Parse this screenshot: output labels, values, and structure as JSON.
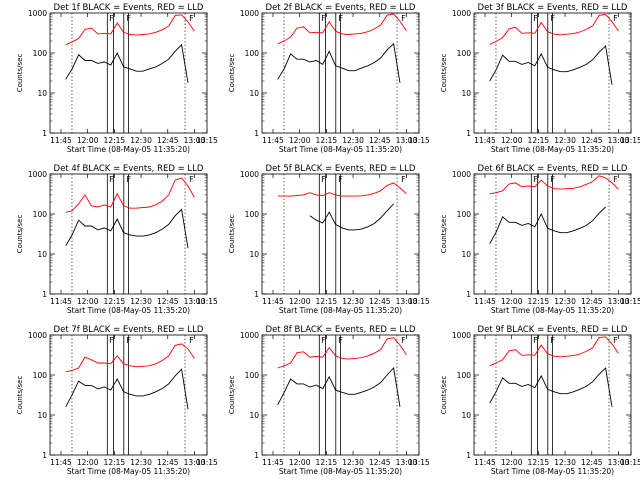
{
  "chart_data": [
    {
      "type": "line",
      "title": "Det 1f BLACK = Events, RED = LLD",
      "xlabel": "Start Time (08-May-05 11:35:20)",
      "ylabel": "Counts/sec",
      "yscale": "log",
      "y_ticks": [
        "1",
        "10",
        "100",
        "1000"
      ],
      "x_ticks": [
        "11:45",
        "12:00",
        "12:15",
        "12:30",
        "12:45",
        "13:00",
        "13:15"
      ],
      "series": [
        {
          "color": "#ff0000",
          "values": [
            160,
            190,
            230,
            390,
            420,
            300,
            310,
            300,
            560,
            330,
            290,
            280,
            290,
            300,
            330,
            380,
            470,
            860,
            900,
            600,
            350
          ]
        },
        {
          "color": "#000000",
          "values": [
            22,
            40,
            90,
            65,
            65,
            55,
            60,
            50,
            100,
            45,
            40,
            35,
            35,
            40,
            45,
            55,
            70,
            110,
            160,
            18,
            null
          ]
        }
      ],
      "markers": {
        "flags": [
          "F",
          "F",
          "F"
        ]
      }
    },
    {
      "type": "line",
      "title": "Det 2f BLACK = Events, RED = LLD",
      "xlabel": "Start Time (08-May-05 11:35:20)",
      "ylabel": "Counts/sec",
      "yscale": "log",
      "y_ticks": [
        "1",
        "10",
        "100",
        "1000"
      ],
      "x_ticks": [
        "11:45",
        "12:00",
        "12:15",
        "12:30",
        "12:45",
        "13:00",
        "13:15"
      ],
      "series": [
        {
          "color": "#ff0000",
          "values": [
            170,
            200,
            250,
            420,
            450,
            320,
            330,
            320,
            600,
            350,
            300,
            290,
            300,
            310,
            340,
            400,
            500,
            880,
            950,
            620,
            360
          ]
        },
        {
          "color": "#000000",
          "values": [
            22,
            40,
            95,
            70,
            70,
            60,
            65,
            52,
            110,
            48,
            42,
            36,
            36,
            42,
            48,
            58,
            75,
            120,
            170,
            18,
            null
          ]
        }
      ],
      "markers": {
        "flags": [
          "F",
          "F",
          "F"
        ]
      }
    },
    {
      "type": "line",
      "title": "Det 3f BLACK = Events, RED = LLD",
      "xlabel": "Start Time (08-May-05 11:35:20)",
      "ylabel": "Counts/sec",
      "yscale": "log",
      "y_ticks": [
        "1",
        "10",
        "100",
        "1000"
      ],
      "x_ticks": [
        "11:45",
        "12:00",
        "12:15",
        "12:30",
        "12:45",
        "13:00",
        "13:15"
      ],
      "series": [
        {
          "color": "#ff0000",
          "values": [
            165,
            195,
            240,
            400,
            440,
            310,
            320,
            310,
            580,
            340,
            295,
            285,
            295,
            305,
            335,
            390,
            480,
            870,
            920,
            610,
            355
          ]
        },
        {
          "color": "#000000",
          "values": [
            20,
            38,
            88,
            62,
            62,
            52,
            58,
            48,
            95,
            44,
            38,
            34,
            34,
            38,
            44,
            52,
            68,
            105,
            150,
            16,
            null
          ]
        }
      ],
      "markers": {
        "flags": [
          "F",
          "F",
          "F"
        ]
      }
    },
    {
      "type": "line",
      "title": "Det 4f BLACK = Events, RED = LLD",
      "xlabel": "Start Time (08-May-05 11:35:20)",
      "ylabel": "Counts/sec",
      "yscale": "log",
      "y_ticks": [
        "1",
        "10",
        "100",
        "1000"
      ],
      "x_ticks": [
        "11:45",
        "12:00",
        "12:15",
        "12:30",
        "12:45",
        "13:00",
        "13:15"
      ],
      "series": [
        {
          "color": "#ff0000",
          "values": [
            110,
            120,
            180,
            300,
            160,
            150,
            170,
            150,
            320,
            160,
            140,
            140,
            145,
            150,
            170,
            210,
            300,
            700,
            800,
            500,
            260
          ]
        },
        {
          "color": "#000000",
          "values": [
            16,
            30,
            70,
            50,
            50,
            40,
            45,
            38,
            75,
            34,
            30,
            28,
            28,
            30,
            34,
            42,
            55,
            90,
            130,
            14,
            null
          ]
        }
      ],
      "markers": {
        "flags": [
          "F",
          "F",
          "F"
        ]
      }
    },
    {
      "type": "line",
      "title": "Det 5f BLACK = Events, RED = LLD",
      "xlabel": "Start Time (08-May-05 11:35:20)",
      "ylabel": "Counts/sec",
      "yscale": "log",
      "y_ticks": [
        "1",
        "10",
        "100",
        "1000"
      ],
      "x_ticks": [
        "11:45",
        "12:00",
        "12:15",
        "12:30",
        "12:45",
        "13:00",
        "13:15"
      ],
      "series": [
        {
          "color": "#ff0000",
          "values": [
            280,
            280,
            280,
            290,
            300,
            340,
            300,
            290,
            340,
            300,
            280,
            280,
            280,
            285,
            300,
            330,
            380,
            520,
            600,
            450,
            320
          ]
        },
        {
          "color": "#000000",
          "values": [
            null,
            null,
            null,
            null,
            null,
            90,
            70,
            60,
            110,
            55,
            45,
            40,
            40,
            42,
            48,
            58,
            80,
            120,
            180,
            null,
            null
          ]
        }
      ],
      "markers": {
        "flags": [
          "F",
          "F",
          "F"
        ]
      }
    },
    {
      "type": "line",
      "title": "Det 6f BLACK = Events, RED = LLD",
      "xlabel": "Start Time (08-May-05 11:35:20)",
      "ylabel": "Counts/sec",
      "yscale": "log",
      "y_ticks": [
        "1",
        "10",
        "100",
        "1000"
      ],
      "x_ticks": [
        "11:45",
        "12:00",
        "12:15",
        "12:30",
        "12:45",
        "13:00",
        "13:15"
      ],
      "series": [
        {
          "color": "#ff0000",
          "values": [
            320,
            340,
            380,
            560,
            600,
            480,
            500,
            480,
            700,
            500,
            430,
            420,
            430,
            440,
            480,
            550,
            650,
            900,
            800,
            600,
            420
          ]
        },
        {
          "color": "#000000",
          "values": [
            18,
            35,
            85,
            62,
            62,
            52,
            58,
            48,
            100,
            44,
            38,
            34,
            34,
            38,
            44,
            52,
            68,
            105,
            150,
            null,
            null
          ]
        }
      ],
      "markers": {
        "flags": [
          "F",
          "F",
          "F"
        ]
      }
    },
    {
      "type": "line",
      "title": "Det 7f BLACK = Events, RED = LLD",
      "xlabel": "Start Time (08-May-05 11:35:20)",
      "ylabel": "Counts/sec",
      "yscale": "log",
      "y_ticks": [
        "1",
        "10",
        "100",
        "1000"
      ],
      "x_ticks": [
        "11:45",
        "12:00",
        "12:15",
        "12:30",
        "12:45",
        "13:00",
        "13:15"
      ],
      "series": [
        {
          "color": "#ff0000",
          "values": [
            120,
            130,
            150,
            280,
            240,
            200,
            200,
            190,
            300,
            190,
            170,
            160,
            165,
            170,
            190,
            230,
            300,
            550,
            600,
            450,
            260
          ]
        },
        {
          "color": "#000000",
          "values": [
            16,
            32,
            70,
            55,
            55,
            45,
            50,
            42,
            80,
            38,
            33,
            30,
            30,
            33,
            38,
            46,
            60,
            95,
            140,
            14,
            null
          ]
        }
      ],
      "markers": {
        "flags": [
          "F",
          "F",
          "F"
        ]
      }
    },
    {
      "type": "line",
      "title": "Det 8f BLACK = Events, RED = LLD",
      "xlabel": "Start Time (08-May-05 11:35:20)",
      "ylabel": "Counts/sec",
      "yscale": "log",
      "y_ticks": [
        "1",
        "10",
        "100",
        "1000"
      ],
      "x_ticks": [
        "11:45",
        "12:00",
        "12:15",
        "12:30",
        "12:45",
        "13:00",
        "13:15"
      ],
      "series": [
        {
          "color": "#ff0000",
          "values": [
            150,
            170,
            200,
            360,
            380,
            280,
            290,
            280,
            480,
            300,
            260,
            250,
            260,
            270,
            300,
            350,
            430,
            800,
            860,
            560,
            320
          ]
        },
        {
          "color": "#000000",
          "values": [
            18,
            36,
            80,
            60,
            60,
            50,
            56,
            46,
            90,
            42,
            37,
            33,
            33,
            37,
            42,
            50,
            65,
            100,
            150,
            16,
            null
          ]
        }
      ],
      "markers": {
        "flags": [
          "F",
          "F",
          "F"
        ]
      }
    },
    {
      "type": "line",
      "title": "Det 9f BLACK = Events, RED = LLD",
      "xlabel": "Start Time (08-May-05 11:35:20)",
      "ylabel": "Counts/sec",
      "yscale": "log",
      "y_ticks": [
        "1",
        "10",
        "100",
        "1000"
      ],
      "x_ticks": [
        "11:45",
        "12:00",
        "12:15",
        "12:30",
        "12:45",
        "13:00",
        "13:15"
      ],
      "series": [
        {
          "color": "#ff0000",
          "values": [
            170,
            200,
            240,
            400,
            430,
            310,
            320,
            310,
            560,
            340,
            295,
            285,
            295,
            305,
            335,
            390,
            480,
            860,
            900,
            600,
            350
          ]
        },
        {
          "color": "#000000",
          "values": [
            20,
            38,
            85,
            62,
            62,
            52,
            58,
            48,
            95,
            44,
            38,
            34,
            34,
            38,
            44,
            52,
            68,
            105,
            150,
            16,
            null
          ]
        }
      ],
      "markers": {
        "flags": [
          "F",
          "F",
          "F"
        ]
      }
    }
  ]
}
